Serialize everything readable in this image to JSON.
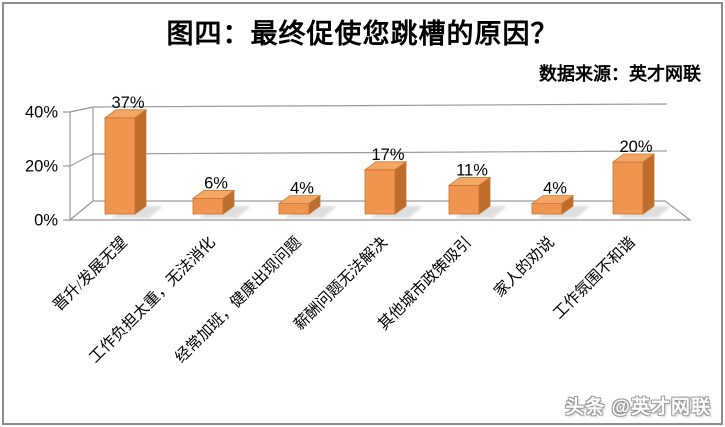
{
  "title": "图四：最终促使您跳槽的原因？",
  "source_note": "数据来源：英才网联",
  "watermark": "头条 @英才网联",
  "chart_data": {
    "type": "bar",
    "style": "3d-perspective",
    "title": "图四：最终促使您跳槽的原因？",
    "source": "数据来源：英才网联",
    "categories": [
      "晋升/发展无望",
      "工作负担太重，无法消化",
      "经常加班，健康出现问题",
      "薪酬问题无法解决",
      "其他城市政策吸引",
      "家人的劝说",
      "工作氛围不和谐"
    ],
    "values": [
      37,
      6,
      4,
      17,
      11,
      4,
      20
    ],
    "value_labels": [
      "37%",
      "6%",
      "4%",
      "17%",
      "11%",
      "4%",
      "20%"
    ],
    "xlabel": "",
    "ylabel": "",
    "ylim": [
      0,
      40
    ],
    "ytick_values": [
      0,
      20,
      40
    ],
    "ytick_labels": [
      "0%",
      "20%",
      "40%"
    ],
    "grid": true,
    "legend": false,
    "colors": {
      "bar_front": "#F0954F",
      "bar_side": "#BE6D2C",
      "bar_top": "#F4A765",
      "bar_edge": "#C97433",
      "shadow": "#c4c4c4",
      "axis_line": "#9a9a9a",
      "label_text": "#000000"
    }
  }
}
